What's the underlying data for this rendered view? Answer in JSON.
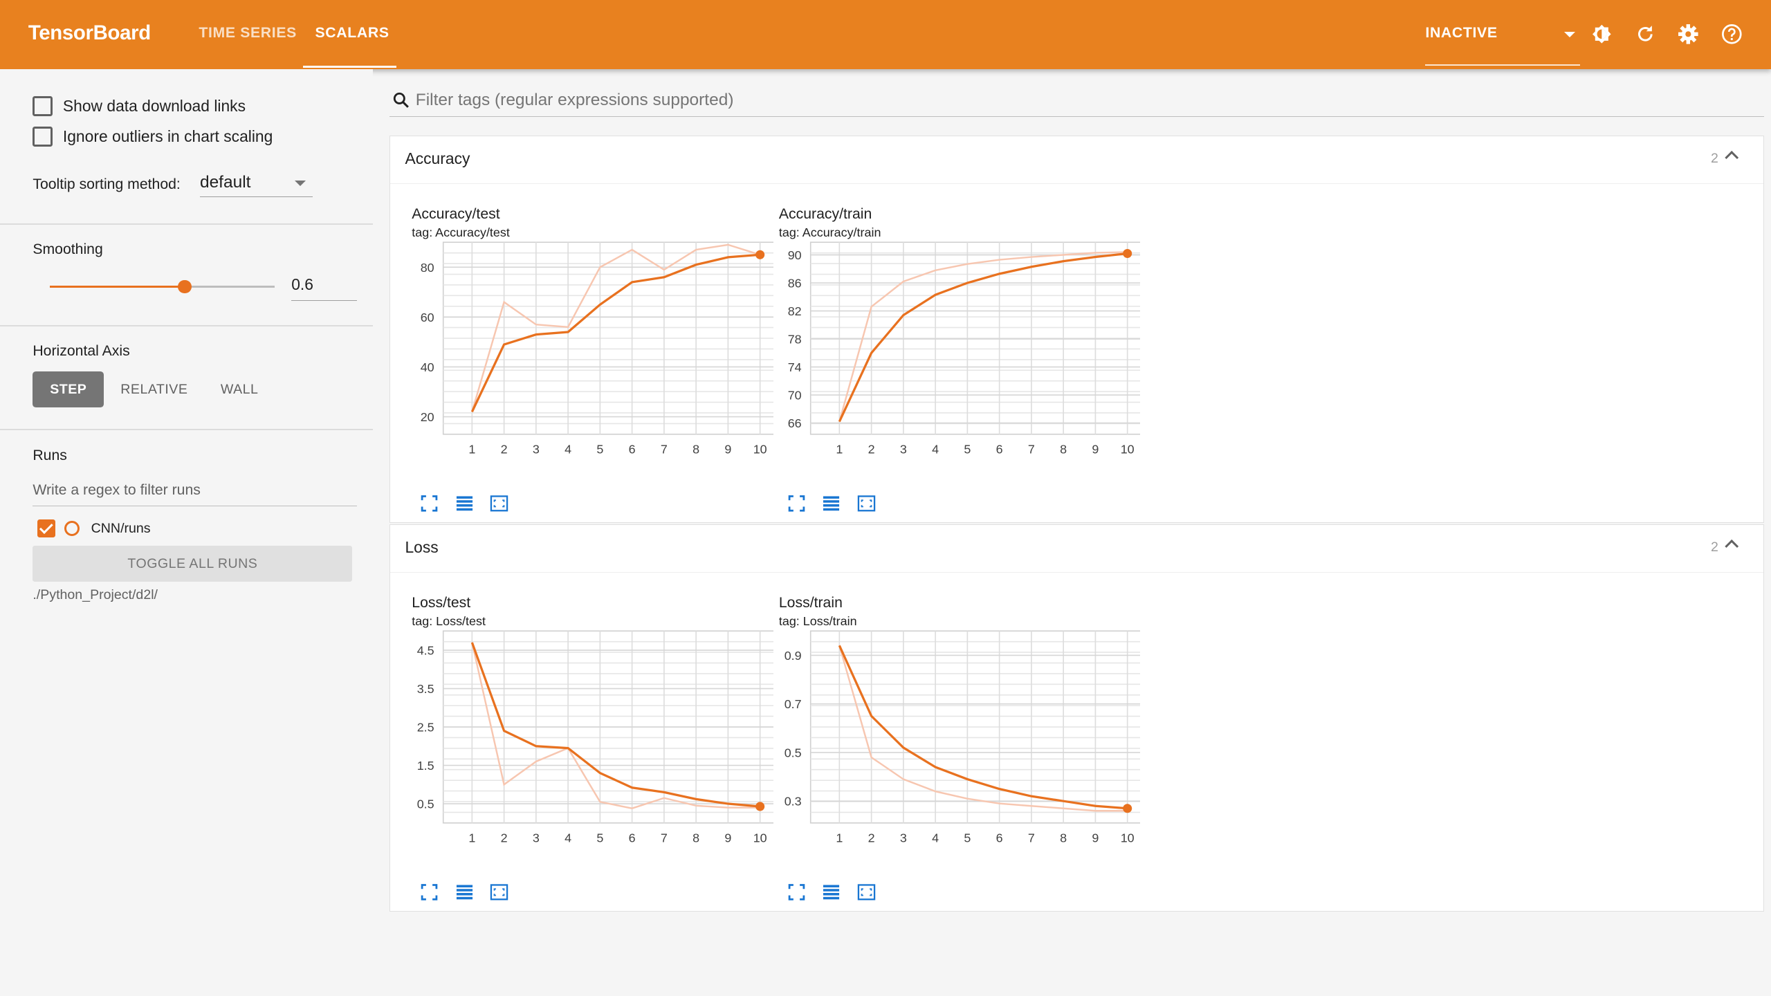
{
  "header": {
    "brand": "TensorBoard",
    "tabs": [
      {
        "label": "TIME SERIES"
      },
      {
        "label": "SCALARS"
      }
    ],
    "active_tab": "SCALARS",
    "status_select": "INACTIVE",
    "icons": [
      "theme-toggle-icon",
      "reload-icon",
      "settings-icon",
      "help-icon"
    ]
  },
  "sidebar": {
    "show_download_links": {
      "label": "Show data download links",
      "checked": false
    },
    "ignore_outliers": {
      "label": "Ignore outliers in chart scaling",
      "checked": false
    },
    "tooltip_sorting": {
      "label": "Tooltip sorting method:",
      "value": "default"
    },
    "smoothing": {
      "label": "Smoothing",
      "value": "0.6",
      "fraction": 0.6
    },
    "horizontal_axis": {
      "label": "Horizontal Axis",
      "options": [
        "STEP",
        "RELATIVE",
        "WALL"
      ],
      "selected": "STEP"
    },
    "runs": {
      "label": "Runs",
      "filter_placeholder": "Write a regex to filter runs",
      "items": [
        {
          "name": "CNN/runs",
          "checked": true,
          "color": "#e8711f"
        }
      ],
      "toggle_all": "TOGGLE ALL RUNS",
      "logdir": "./Python_Project/d2l/"
    }
  },
  "main": {
    "filter_placeholder": "Filter tags (regular expressions supported)",
    "groups": [
      {
        "title": "Accuracy",
        "count": "2"
      },
      {
        "title": "Loss",
        "count": "2"
      }
    ]
  },
  "colors": {
    "accent": "#e8811f",
    "series": "#e8711f",
    "series_raw": "#f7c6b0",
    "icon": "#1976d2"
  },
  "chart_data": [
    {
      "type": "line",
      "title": "Accuracy/test",
      "tag": "tag: Accuracy/test",
      "x": [
        1,
        2,
        3,
        4,
        5,
        6,
        7,
        8,
        9,
        10
      ],
      "series": [
        {
          "values": [
            22,
            66,
            57,
            56,
            80,
            87,
            79,
            87,
            89,
            85
          ]
        },
        {
          "values": [
            22,
            49,
            53,
            54,
            65,
            74,
            76,
            81,
            84,
            85
          ]
        }
      ],
      "yticks": [
        20,
        40,
        60,
        80
      ],
      "xticks": [
        1,
        2,
        3,
        4,
        5,
        6,
        7,
        8,
        9,
        10
      ],
      "ylim": [
        13,
        90
      ],
      "xlim": [
        0.1,
        10.9
      ]
    },
    {
      "type": "line",
      "title": "Accuracy/train",
      "tag": "tag: Accuracy/train",
      "x": [
        1,
        2,
        3,
        4,
        5,
        6,
        7,
        8,
        9,
        10
      ],
      "series": [
        {
          "values": [
            66.2,
            82.6,
            86.2,
            87.8,
            88.7,
            89.3,
            89.7,
            90.0,
            90.3,
            90.4
          ]
        },
        {
          "values": [
            66.2,
            76.0,
            81.4,
            84.3,
            86.0,
            87.3,
            88.3,
            89.1,
            89.7,
            90.2
          ]
        }
      ],
      "yticks": [
        66,
        70,
        74,
        78,
        82,
        86,
        90
      ],
      "xticks": [
        1,
        2,
        3,
        4,
        5,
        6,
        7,
        8,
        9,
        10
      ],
      "ylim": [
        64.4,
        91.8
      ],
      "xlim": [
        0.1,
        10.9
      ]
    },
    {
      "type": "line",
      "title": "Loss/test",
      "tag": "tag: Loss/test",
      "x": [
        1,
        2,
        3,
        4,
        5,
        6,
        7,
        8,
        9,
        10
      ],
      "series": [
        {
          "values": [
            4.7,
            1.0,
            1.6,
            1.95,
            0.55,
            0.38,
            0.65,
            0.45,
            0.4,
            0.4
          ]
        },
        {
          "values": [
            4.7,
            2.4,
            2.0,
            1.95,
            1.3,
            0.92,
            0.8,
            0.62,
            0.5,
            0.43
          ]
        }
      ],
      "yticks": [
        0.5,
        1.5,
        2.5,
        3.5,
        4.5
      ],
      "xticks": [
        1,
        2,
        3,
        4,
        5,
        6,
        7,
        8,
        9,
        10
      ],
      "ylim": [
        0.0,
        5.0
      ],
      "xlim": [
        0.1,
        10.9
      ]
    },
    {
      "type": "line",
      "title": "Loss/train",
      "tag": "tag: Loss/train",
      "x": [
        1,
        2,
        3,
        4,
        5,
        6,
        7,
        8,
        9,
        10
      ],
      "series": [
        {
          "values": [
            0.94,
            0.48,
            0.39,
            0.34,
            0.31,
            0.29,
            0.28,
            0.27,
            0.26,
            0.26
          ]
        },
        {
          "values": [
            0.94,
            0.65,
            0.52,
            0.44,
            0.39,
            0.35,
            0.32,
            0.3,
            0.28,
            0.27
          ]
        }
      ],
      "yticks": [
        0.3,
        0.5,
        0.7,
        0.9
      ],
      "xticks": [
        1,
        2,
        3,
        4,
        5,
        6,
        7,
        8,
        9,
        10
      ],
      "ylim": [
        0.21,
        1.0
      ],
      "xlim": [
        0.1,
        10.9
      ]
    }
  ]
}
